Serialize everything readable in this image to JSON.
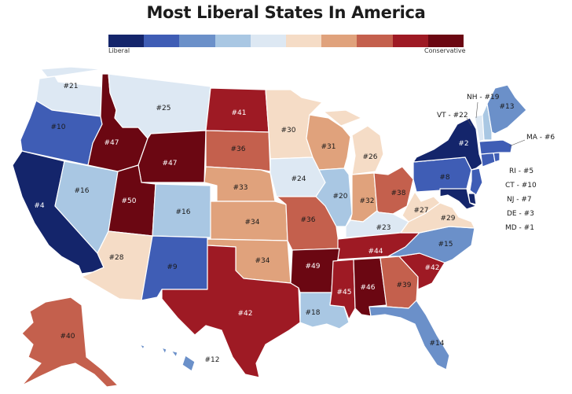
{
  "title": "Most Liberal States In America",
  "legend": {
    "left_label": "Liberal",
    "right_label": "Conservative",
    "colors": [
      "#14256b",
      "#3f5db5",
      "#6b90c9",
      "#a9c7e3",
      "#dde8f3",
      "#f5dcc6",
      "#e0a27c",
      "#c4604d",
      "#9e1a24",
      "#6b0712"
    ]
  },
  "states": [
    {
      "code": "WA",
      "rank": "#21",
      "color": "#dde8f3"
    },
    {
      "code": "OR",
      "rank": "#10",
      "color": "#3f5db5"
    },
    {
      "code": "CA",
      "rank": "#4",
      "color": "#14256b"
    },
    {
      "code": "ID",
      "rank": "#47",
      "color": "#6b0712"
    },
    {
      "code": "NV",
      "rank": "#16",
      "color": "#a9c7e3"
    },
    {
      "code": "MT",
      "rank": "#25",
      "color": "#dde8f3"
    },
    {
      "code": "WY",
      "rank": "#47",
      "color": "#6b0712"
    },
    {
      "code": "UT",
      "rank": "#50",
      "color": "#6b0712"
    },
    {
      "code": "AZ",
      "rank": "#28",
      "color": "#f5dcc6"
    },
    {
      "code": "CO",
      "rank": "#16",
      "color": "#a9c7e3"
    },
    {
      "code": "NM",
      "rank": "#9",
      "color": "#3f5db5"
    },
    {
      "code": "ND",
      "rank": "#41",
      "color": "#9e1a24"
    },
    {
      "code": "SD",
      "rank": "#36",
      "color": "#c4604d"
    },
    {
      "code": "NE",
      "rank": "#33",
      "color": "#e0a27c"
    },
    {
      "code": "KS",
      "rank": "#34",
      "color": "#e0a27c"
    },
    {
      "code": "OK",
      "rank": "#34",
      "color": "#e0a27c"
    },
    {
      "code": "TX",
      "rank": "#42",
      "color": "#9e1a24"
    },
    {
      "code": "MN",
      "rank": "#30",
      "color": "#f5dcc6"
    },
    {
      "code": "IA",
      "rank": "#24",
      "color": "#dde8f3"
    },
    {
      "code": "MO",
      "rank": "#36",
      "color": "#c4604d"
    },
    {
      "code": "AR",
      "rank": "#49",
      "color": "#6b0712"
    },
    {
      "code": "LA",
      "rank": "#18",
      "color": "#a9c7e3"
    },
    {
      "code": "WI",
      "rank": "#31",
      "color": "#e0a27c"
    },
    {
      "code": "IL",
      "rank": "#20",
      "color": "#a9c7e3"
    },
    {
      "code": "MI",
      "rank": "#26",
      "color": "#f5dcc6"
    },
    {
      "code": "IN",
      "rank": "#32",
      "color": "#e0a27c"
    },
    {
      "code": "OH",
      "rank": "#38",
      "color": "#c4604d"
    },
    {
      "code": "KY",
      "rank": "#23",
      "color": "#dde8f3"
    },
    {
      "code": "TN",
      "rank": "#44",
      "color": "#9e1a24"
    },
    {
      "code": "MS",
      "rank": "#45",
      "color": "#9e1a24"
    },
    {
      "code": "AL",
      "rank": "#46",
      "color": "#6b0712"
    },
    {
      "code": "GA",
      "rank": "#39",
      "color": "#c4604d"
    },
    {
      "code": "FL",
      "rank": "#14",
      "color": "#6b90c9"
    },
    {
      "code": "SC",
      "rank": "#42",
      "color": "#9e1a24"
    },
    {
      "code": "NC",
      "rank": "#15",
      "color": "#6b90c9"
    },
    {
      "code": "VA",
      "rank": "#29",
      "color": "#f5dcc6"
    },
    {
      "code": "WV",
      "rank": "#27",
      "color": "#f5dcc6"
    },
    {
      "code": "PA",
      "rank": "#8",
      "color": "#3f5db5"
    },
    {
      "code": "NY",
      "rank": "#2",
      "color": "#14256b"
    },
    {
      "code": "ME",
      "rank": "#13",
      "color": "#6b90c9"
    },
    {
      "code": "AK",
      "rank": "#40",
      "color": "#c4604d"
    },
    {
      "code": "HI",
      "rank": "#12",
      "color": "#6b90c9"
    }
  ],
  "small_states": {
    "VT": {
      "label": "VT - #22",
      "color": "#dde8f3"
    },
    "NH": {
      "label": "NH - #19",
      "color": "#a9c7e3"
    },
    "MA": {
      "label": "MA - #6",
      "color": "#3f5db5"
    },
    "RI": {
      "label": "RI - #5",
      "color": "#3f5db5"
    },
    "CT": {
      "label": "CT - #10",
      "color": "#3f5db5"
    },
    "NJ": {
      "label": "NJ - #7",
      "color": "#3f5db5"
    },
    "DE": {
      "label": "DE - #3",
      "color": "#14256b"
    },
    "MD": {
      "label": "MD - #1",
      "color": "#14256b"
    }
  }
}
